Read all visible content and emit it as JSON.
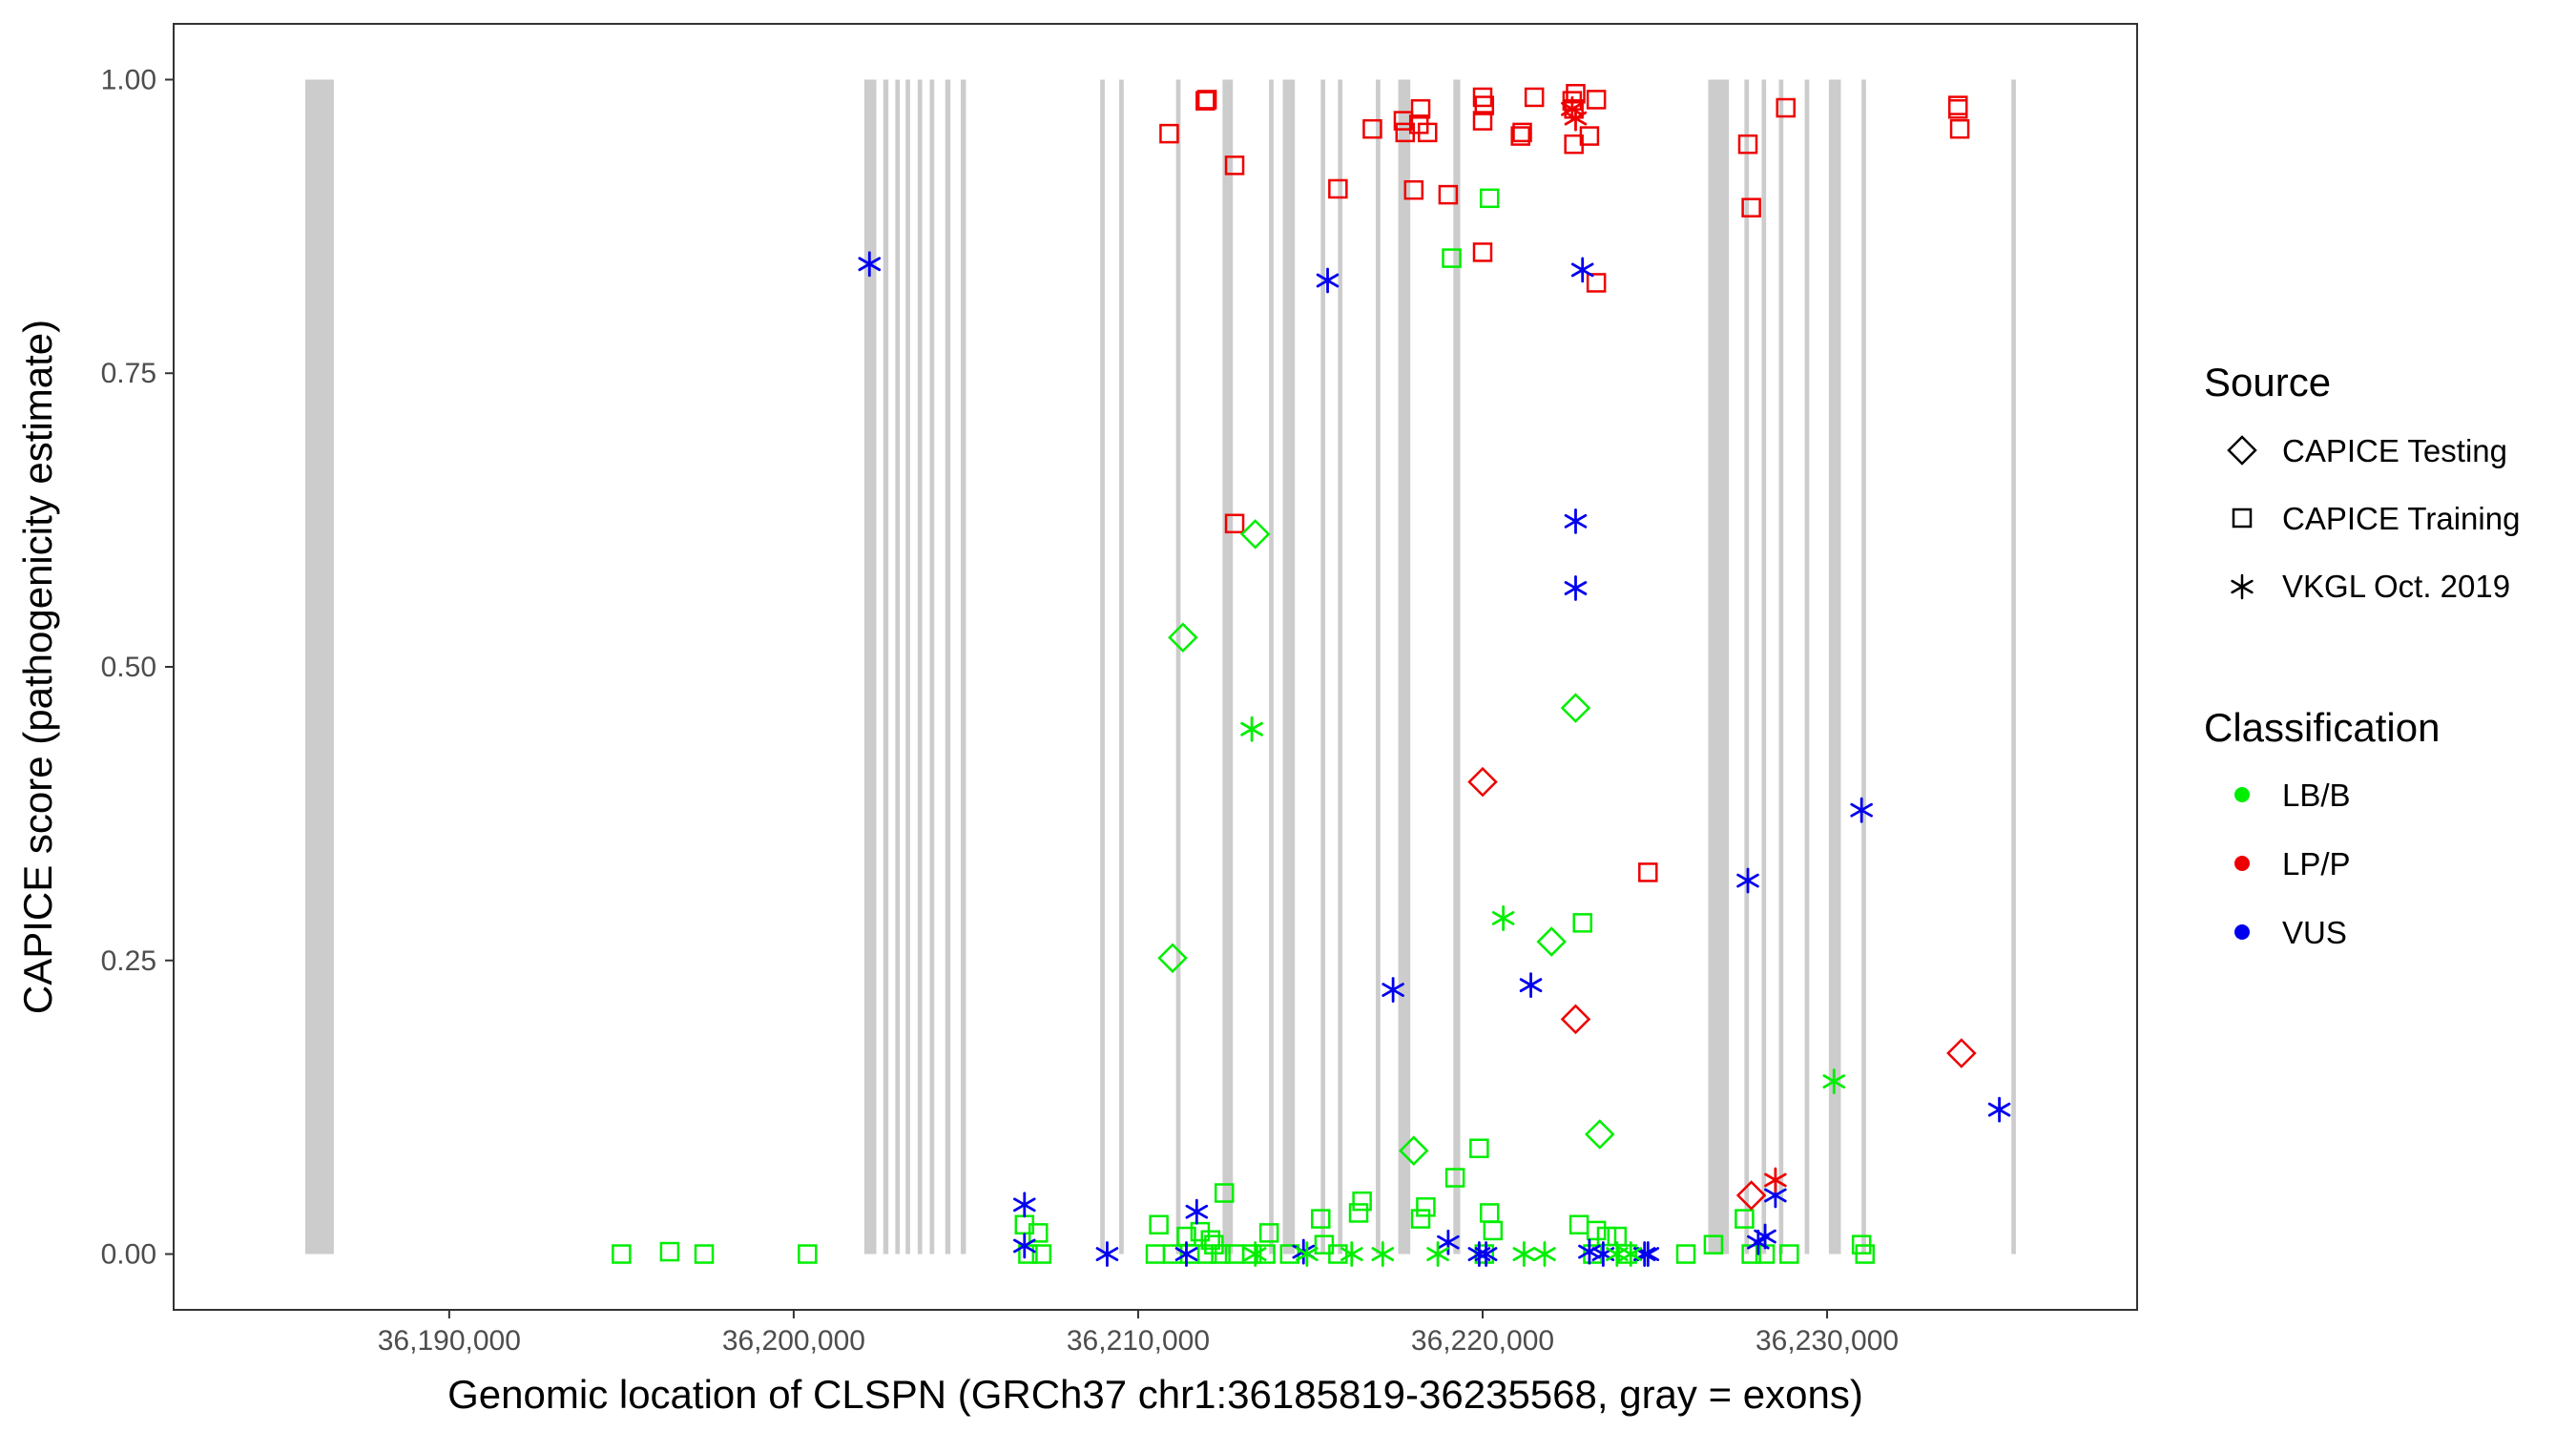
{
  "chart_data": {
    "type": "scatter",
    "xlabel": "Genomic location of CLSPN (GRCh37 chr1:36185819-36235568, gray = exons)",
    "ylabel": "CAPICE score (pathogenicity estimate)",
    "xlim": [
      36182000,
      36239000
    ],
    "ylim": [
      -0.0475,
      1.0475
    ],
    "x_ticks": [
      36190000,
      36200000,
      36210000,
      36220000,
      36230000
    ],
    "x_tick_labels": [
      "36,190,000",
      "36,200,000",
      "36,210,000",
      "36,220,000",
      "36,230,000"
    ],
    "y_ticks": [
      0,
      0.25,
      0.5,
      0.75,
      1.0
    ],
    "y_tick_labels": [
      "0.00",
      "0.25",
      "0.50",
      "0.75",
      "1.00"
    ],
    "colors": {
      "LB/B": "#00ee00",
      "LP/P": "#ee0000",
      "VUS": "#0000ee",
      "exon": "#cccccc"
    },
    "exons": [
      [
        36185819,
        36186650
      ],
      [
        36202050,
        36202400
      ],
      [
        36202600,
        36202750
      ],
      [
        36202950,
        36203080
      ],
      [
        36203250,
        36203380
      ],
      [
        36203600,
        36203730
      ],
      [
        36203950,
        36204080
      ],
      [
        36204400,
        36204550
      ],
      [
        36204850,
        36205000
      ],
      [
        36208900,
        36209030
      ],
      [
        36209450,
        36209580
      ],
      [
        36211100,
        36211230
      ],
      [
        36212450,
        36212750
      ],
      [
        36213800,
        36213930
      ],
      [
        36214200,
        36214550
      ],
      [
        36215300,
        36215430
      ],
      [
        36215800,
        36215930
      ],
      [
        36216900,
        36217030
      ],
      [
        36217550,
        36217900
      ],
      [
        36219150,
        36219350
      ],
      [
        36226550,
        36227150
      ],
      [
        36227600,
        36227730
      ],
      [
        36228100,
        36228230
      ],
      [
        36228600,
        36228730
      ],
      [
        36229350,
        36229480
      ],
      [
        36230050,
        36230400
      ],
      [
        36231000,
        36231130
      ],
      [
        36235350,
        36235480
      ]
    ],
    "legend": {
      "source_title": "Source",
      "source_items": [
        "CAPICE Testing",
        "CAPICE Training",
        "VKGL Oct. 2019"
      ],
      "class_title": "Classification",
      "class_items": [
        "LB/B",
        "LP/P",
        "VUS"
      ]
    },
    "series": [
      {
        "source": "CAPICE Training",
        "cls": "LP/P",
        "points": [
          [
            36210900,
            0.954
          ],
          [
            36211950,
            0.982
          ],
          [
            36212000,
            0.983
          ],
          [
            36212800,
            0.927
          ],
          [
            36215800,
            0.907
          ],
          [
            36216800,
            0.958
          ],
          [
            36217700,
            0.965
          ],
          [
            36217750,
            0.955
          ],
          [
            36218150,
            0.962
          ],
          [
            36218200,
            0.975
          ],
          [
            36218400,
            0.955
          ],
          [
            36218000,
            0.906
          ],
          [
            36219000,
            0.902
          ],
          [
            36220000,
            0.985
          ],
          [
            36220050,
            0.978
          ],
          [
            36220000,
            0.965
          ],
          [
            36221100,
            0.952
          ],
          [
            36221150,
            0.955
          ],
          [
            36221500,
            0.985
          ],
          [
            36222600,
            0.982
          ],
          [
            36222700,
            0.988
          ],
          [
            36222650,
            0.975
          ],
          [
            36222650,
            0.945
          ],
          [
            36223100,
            0.952
          ],
          [
            36223300,
            0.983
          ],
          [
            36220000,
            0.853
          ],
          [
            36223300,
            0.827
          ],
          [
            36212800,
            0.622
          ],
          [
            36227700,
            0.945
          ],
          [
            36227800,
            0.891
          ],
          [
            36228800,
            0.976
          ],
          [
            36224800,
            0.325
          ],
          [
            36233800,
            0.978
          ],
          [
            36233850,
            0.958
          ],
          [
            36233800,
            0.975
          ]
        ]
      },
      {
        "source": "CAPICE Training",
        "cls": "LB/B",
        "points": [
          [
            36220200,
            0.899
          ],
          [
            36219100,
            0.848
          ],
          [
            36222900,
            0.282
          ],
          [
            36216500,
            0.045
          ],
          [
            36212500,
            0.052
          ],
          [
            36213800,
            0.018
          ],
          [
            36215300,
            0.03
          ],
          [
            36219200,
            0.065
          ],
          [
            36219900,
            0.09
          ],
          [
            36210600,
            0.025
          ],
          [
            36211400,
            0.015
          ],
          [
            36211800,
            0.019
          ],
          [
            36212100,
            0.012
          ],
          [
            36212200,
            0.008
          ],
          [
            36206700,
            0.025
          ],
          [
            36207100,
            0.018
          ],
          [
            36195000,
            0.0
          ],
          [
            36196400,
            0.002
          ],
          [
            36197400,
            0.0
          ],
          [
            36200400,
            0.0
          ],
          [
            36206800,
            0.0
          ],
          [
            36207200,
            0.0
          ],
          [
            36210500,
            0.0
          ],
          [
            36211000,
            0.0
          ],
          [
            36211500,
            0.0
          ],
          [
            36212000,
            0.0
          ],
          [
            36212400,
            0.0
          ],
          [
            36212800,
            0.0
          ],
          [
            36213300,
            0.0
          ],
          [
            36213700,
            0.0
          ],
          [
            36214400,
            0.0
          ],
          [
            36215400,
            0.008
          ],
          [
            36215800,
            0.0
          ],
          [
            36216400,
            0.035
          ],
          [
            36218200,
            0.03
          ],
          [
            36218350,
            0.04
          ],
          [
            36220050,
            0.0
          ],
          [
            36220200,
            0.035
          ],
          [
            36220300,
            0.02
          ],
          [
            36222800,
            0.025
          ],
          [
            36223200,
            0.0
          ],
          [
            36223300,
            0.02
          ],
          [
            36223600,
            0.015
          ],
          [
            36223900,
            0.015
          ],
          [
            36224200,
            0.0
          ],
          [
            36225900,
            0.0
          ],
          [
            36226700,
            0.008
          ],
          [
            36227600,
            0.03
          ],
          [
            36227800,
            0.0
          ],
          [
            36228200,
            0.0
          ],
          [
            36228900,
            0.0
          ],
          [
            36231000,
            0.008
          ],
          [
            36231100,
            0.0
          ]
        ]
      },
      {
        "source": "CAPICE Testing",
        "cls": "LB/B",
        "points": [
          [
            36213400,
            0.613
          ],
          [
            36211300,
            0.525
          ],
          [
            36222700,
            0.465
          ],
          [
            36211000,
            0.252
          ],
          [
            36222000,
            0.266
          ],
          [
            36223400,
            0.102
          ],
          [
            36218000,
            0.088
          ]
        ]
      },
      {
        "source": "CAPICE Testing",
        "cls": "LP/P",
        "points": [
          [
            36220000,
            0.402
          ],
          [
            36222700,
            0.2
          ],
          [
            36233900,
            0.171
          ],
          [
            36227800,
            0.05
          ]
        ]
      },
      {
        "source": "VKGL Oct. 2019",
        "cls": "VUS",
        "points": [
          [
            36202200,
            0.843
          ],
          [
            36215500,
            0.829
          ],
          [
            36222900,
            0.838
          ],
          [
            36222700,
            0.624
          ],
          [
            36222700,
            0.567
          ],
          [
            36231000,
            0.378
          ],
          [
            36227700,
            0.318
          ],
          [
            36217400,
            0.225
          ],
          [
            36221400,
            0.229
          ],
          [
            36235000,
            0.123
          ],
          [
            36206700,
            0.042
          ],
          [
            36211700,
            0.036
          ],
          [
            36228500,
            0.05
          ],
          [
            36228200,
            0.015
          ],
          [
            36228000,
            0.01
          ],
          [
            36206700,
            0.007
          ],
          [
            36209100,
            0.0
          ],
          [
            36211400,
            0.0
          ],
          [
            36214800,
            0.002
          ],
          [
            36219000,
            0.01
          ],
          [
            36219900,
            0.0
          ],
          [
            36220100,
            0.0
          ],
          [
            36223100,
            0.002
          ],
          [
            36223500,
            0.0
          ],
          [
            36224700,
            0.0
          ],
          [
            36224800,
            0.0
          ]
        ]
      },
      {
        "source": "VKGL Oct. 2019",
        "cls": "LB/B",
        "points": [
          [
            36213300,
            0.447
          ],
          [
            36220600,
            0.286
          ],
          [
            36230200,
            0.147
          ],
          [
            36213400,
            0.0
          ],
          [
            36214900,
            0.0
          ],
          [
            36216200,
            0.0
          ],
          [
            36217100,
            0.0
          ],
          [
            36218700,
            0.0
          ],
          [
            36221200,
            0.0
          ],
          [
            36221800,
            0.0
          ],
          [
            36223900,
            0.0
          ],
          [
            36224300,
            0.0
          ]
        ]
      },
      {
        "source": "VKGL Oct. 2019",
        "cls": "LP/P",
        "points": [
          [
            36222700,
            0.967
          ],
          [
            36222600,
            0.975
          ],
          [
            36228500,
            0.063
          ]
        ]
      }
    ]
  }
}
